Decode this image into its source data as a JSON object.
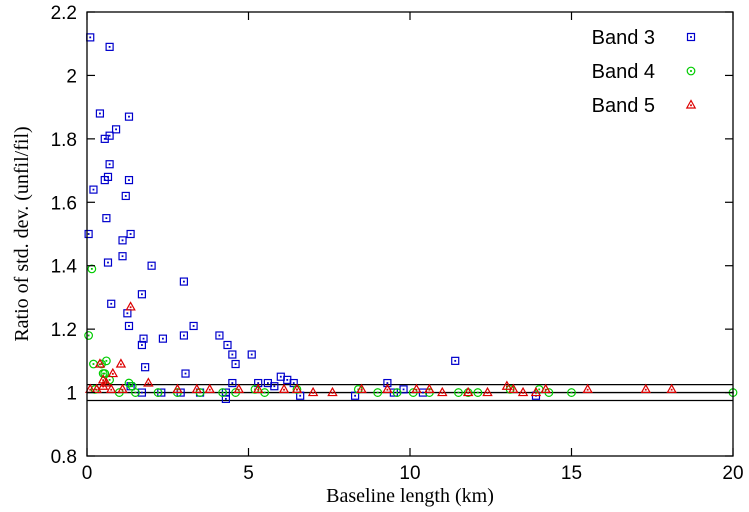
{
  "chart_data": {
    "type": "scatter",
    "xlabel": "Baseline length (km)",
    "ylabel": "Ratio of std. dev. (unfil/fil)",
    "xlim": [
      0,
      20
    ],
    "ylim": [
      0.8,
      2.2
    ],
    "xticks": [
      0,
      5,
      10,
      15,
      20
    ],
    "yticks": [
      0.8,
      1.0,
      1.2,
      1.4,
      1.6,
      1.8,
      2.0,
      2.2
    ],
    "xtick_labels": [
      "0",
      "5",
      "10",
      "15",
      "20"
    ],
    "ytick_labels": [
      "0.8",
      "1",
      "1.2",
      "1.4",
      "1.6",
      "1.8",
      "2",
      "2.2"
    ],
    "legend_position": "top-right",
    "reference_lines": [
      1.025,
      1.0,
      0.975
    ],
    "series": [
      {
        "name": "Band 3",
        "marker": "square",
        "color": "#0000cc",
        "points": [
          [
            0.1,
            2.12
          ],
          [
            0.7,
            2.09
          ],
          [
            0.4,
            1.88
          ],
          [
            0.9,
            1.83
          ],
          [
            0.7,
            1.81
          ],
          [
            0.55,
            1.8
          ],
          [
            1.3,
            1.87
          ],
          [
            0.7,
            1.72
          ],
          [
            0.65,
            1.68
          ],
          [
            0.55,
            1.67
          ],
          [
            1.3,
            1.67
          ],
          [
            0.2,
            1.64
          ],
          [
            1.2,
            1.62
          ],
          [
            0.6,
            1.55
          ],
          [
            1.35,
            1.5
          ],
          [
            0.05,
            1.5
          ],
          [
            1.1,
            1.48
          ],
          [
            1.1,
            1.43
          ],
          [
            0.65,
            1.41
          ],
          [
            2.0,
            1.4
          ],
          [
            3.0,
            1.35
          ],
          [
            1.7,
            1.31
          ],
          [
            0.75,
            1.28
          ],
          [
            1.25,
            1.25
          ],
          [
            1.3,
            1.21
          ],
          [
            3.3,
            1.21
          ],
          [
            3.0,
            1.18
          ],
          [
            4.1,
            1.18
          ],
          [
            1.75,
            1.17
          ],
          [
            2.35,
            1.17
          ],
          [
            4.35,
            1.15
          ],
          [
            1.7,
            1.15
          ],
          [
            4.5,
            1.12
          ],
          [
            5.1,
            1.12
          ],
          [
            1.8,
            1.08
          ],
          [
            4.6,
            1.09
          ],
          [
            3.05,
            1.06
          ],
          [
            6.0,
            1.05
          ],
          [
            6.2,
            1.04
          ],
          [
            5.3,
            1.03
          ],
          [
            4.5,
            1.03
          ],
          [
            5.6,
            1.03
          ],
          [
            6.4,
            1.03
          ],
          [
            5.8,
            1.02
          ],
          [
            11.4,
            1.1
          ],
          [
            9.3,
            1.03
          ],
          [
            1.35,
            1.02
          ],
          [
            2.3,
            1.0
          ],
          [
            4.3,
            1.0
          ],
          [
            2.9,
            1.0
          ],
          [
            1.7,
            1.0
          ],
          [
            3.5,
            1.0
          ],
          [
            6.6,
            0.99
          ],
          [
            8.3,
            0.99
          ],
          [
            10.4,
            1.0
          ],
          [
            9.5,
            1.0
          ],
          [
            13.9,
            0.99
          ],
          [
            9.8,
            1.01
          ],
          [
            4.3,
            0.98
          ]
        ]
      },
      {
        "name": "Band 4",
        "marker": "circle",
        "color": "#00cc00",
        "points": [
          [
            0.15,
            1.39
          ],
          [
            0.05,
            1.18
          ],
          [
            0.6,
            1.1
          ],
          [
            0.2,
            1.09
          ],
          [
            0.45,
            1.09
          ],
          [
            0.5,
            1.06
          ],
          [
            0.55,
            1.06
          ],
          [
            0.7,
            1.04
          ],
          [
            1.3,
            1.03
          ],
          [
            1.4,
            1.02
          ],
          [
            0.25,
            1.01
          ],
          [
            1.0,
            1.0
          ],
          [
            1.5,
            1.0
          ],
          [
            2.2,
            1.0
          ],
          [
            2.8,
            1.0
          ],
          [
            3.5,
            1.0
          ],
          [
            4.2,
            1.0
          ],
          [
            4.6,
            1.0
          ],
          [
            5.2,
            1.01
          ],
          [
            5.5,
            1.0
          ],
          [
            6.5,
            1.01
          ],
          [
            8.4,
            1.01
          ],
          [
            9.0,
            1.0
          ],
          [
            9.6,
            1.0
          ],
          [
            10.1,
            1.0
          ],
          [
            10.6,
            1.0
          ],
          [
            11.5,
            1.0
          ],
          [
            11.8,
            1.0
          ],
          [
            12.1,
            1.0
          ],
          [
            13.1,
            1.01
          ],
          [
            14.0,
            1.01
          ],
          [
            14.3,
            1.0
          ],
          [
            15.0,
            1.0
          ],
          [
            20.0,
            1.0
          ]
        ]
      },
      {
        "name": "Band 5",
        "marker": "triangle",
        "color": "#dd0000",
        "points": [
          [
            1.35,
            1.27
          ],
          [
            1.05,
            1.09
          ],
          [
            0.4,
            1.09
          ],
          [
            0.8,
            1.06
          ],
          [
            0.5,
            1.04
          ],
          [
            0.6,
            1.03
          ],
          [
            0.5,
            1.02
          ],
          [
            0.75,
            1.01
          ],
          [
            0.1,
            1.01
          ],
          [
            0.3,
            1.01
          ],
          [
            1.1,
            1.01
          ],
          [
            1.9,
            1.03
          ],
          [
            2.8,
            1.01
          ],
          [
            3.4,
            1.01
          ],
          [
            3.8,
            1.01
          ],
          [
            4.7,
            1.01
          ],
          [
            5.3,
            1.01
          ],
          [
            6.1,
            1.01
          ],
          [
            6.5,
            1.01
          ],
          [
            7.0,
            1.0
          ],
          [
            7.6,
            1.0
          ],
          [
            8.5,
            1.01
          ],
          [
            9.3,
            1.01
          ],
          [
            10.2,
            1.01
          ],
          [
            10.6,
            1.01
          ],
          [
            11.0,
            1.0
          ],
          [
            11.8,
            1.0
          ],
          [
            12.4,
            1.0
          ],
          [
            13.0,
            1.02
          ],
          [
            13.2,
            1.01
          ],
          [
            13.5,
            1.0
          ],
          [
            13.9,
            1.0
          ],
          [
            14.2,
            1.01
          ],
          [
            15.5,
            1.01
          ],
          [
            17.3,
            1.01
          ],
          [
            18.1,
            1.01
          ]
        ]
      }
    ]
  }
}
